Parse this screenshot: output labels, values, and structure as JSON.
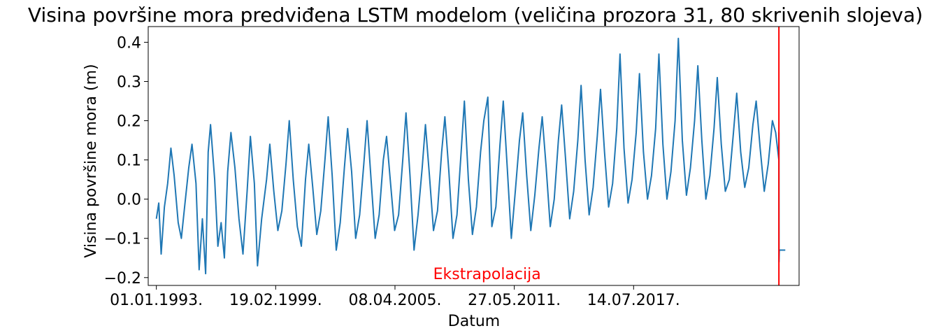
{
  "chart_data": {
    "type": "line",
    "title": "Visina površine mora predviđena LSTM modelom (veličina prozora 31, 80 skrivenih slojeva)",
    "xlabel": "Datum",
    "ylabel": "Visina površine mora (m)",
    "xlim": [
      "1992-08-01",
      "2026-01-15"
    ],
    "ylim": [
      -0.22,
      0.44
    ],
    "x_ticks": [
      "01.01.1993.",
      "19.02.1999.",
      "08.04.2005.",
      "27.05.2011.",
      "14.07.2017."
    ],
    "x_tick_dates": [
      "1993-01-01",
      "1999-02-19",
      "2005-04-08",
      "2011-05-27",
      "2017-07-14"
    ],
    "y_ticks": [
      -0.2,
      -0.1,
      0.0,
      0.1,
      0.2,
      0.3,
      0.4
    ],
    "y_tick_labels": [
      "−0.2",
      "−0.1",
      "0.0",
      "0.1",
      "0.2",
      "0.3",
      "0.4"
    ],
    "grid": false,
    "series": [
      {
        "color": "#1f77b4",
        "points": [
          [
            "1993-01-01",
            -0.05
          ],
          [
            "1993-02-15",
            -0.01
          ],
          [
            "1993-04-01",
            -0.14
          ],
          [
            "1993-06-01",
            -0.02
          ],
          [
            "1993-08-01",
            0.04
          ],
          [
            "1993-10-01",
            0.13
          ],
          [
            "1993-12-01",
            0.06
          ],
          [
            "1994-02-15",
            -0.06
          ],
          [
            "1994-04-15",
            -0.1
          ],
          [
            "1994-06-15",
            -0.02
          ],
          [
            "1994-09-01",
            0.08
          ],
          [
            "1994-11-01",
            0.14
          ],
          [
            "1995-01-15",
            0.04
          ],
          [
            "1995-03-15",
            -0.18
          ],
          [
            "1995-05-15",
            -0.05
          ],
          [
            "1995-07-15",
            -0.19
          ],
          [
            "1995-09-01",
            0.12
          ],
          [
            "1995-10-15",
            0.19
          ],
          [
            "1996-01-01",
            0.05
          ],
          [
            "1996-03-01",
            -0.12
          ],
          [
            "1996-05-01",
            -0.06
          ],
          [
            "1996-07-01",
            -0.15
          ],
          [
            "1996-09-01",
            0.07
          ],
          [
            "1996-11-01",
            0.17
          ],
          [
            "1997-01-15",
            0.08
          ],
          [
            "1997-04-01",
            -0.05
          ],
          [
            "1997-06-15",
            -0.14
          ],
          [
            "1997-09-01",
            0.02
          ],
          [
            "1997-11-01",
            0.16
          ],
          [
            "1998-01-15",
            0.04
          ],
          [
            "1998-03-15",
            -0.17
          ],
          [
            "1998-06-01",
            -0.05
          ],
          [
            "1998-09-01",
            0.05
          ],
          [
            "1998-11-01",
            0.14
          ],
          [
            "1999-01-15",
            0.02
          ],
          [
            "1999-04-01",
            -0.08
          ],
          [
            "1999-06-15",
            -0.03
          ],
          [
            "1999-09-01",
            0.09
          ],
          [
            "1999-11-01",
            0.2
          ],
          [
            "2000-01-15",
            0.05
          ],
          [
            "2000-04-01",
            -0.07
          ],
          [
            "2000-06-15",
            -0.12
          ],
          [
            "2000-09-01",
            0.05
          ],
          [
            "2000-11-01",
            0.14
          ],
          [
            "2001-01-15",
            0.03
          ],
          [
            "2001-04-01",
            -0.09
          ],
          [
            "2001-06-15",
            -0.03
          ],
          [
            "2001-09-01",
            0.1
          ],
          [
            "2001-11-01",
            0.21
          ],
          [
            "2002-01-15",
            0.06
          ],
          [
            "2002-04-01",
            -0.13
          ],
          [
            "2002-06-15",
            -0.06
          ],
          [
            "2002-09-01",
            0.08
          ],
          [
            "2002-11-01",
            0.18
          ],
          [
            "2003-01-15",
            0.07
          ],
          [
            "2003-04-01",
            -0.1
          ],
          [
            "2003-06-15",
            -0.04
          ],
          [
            "2003-09-01",
            0.09
          ],
          [
            "2003-11-01",
            0.2
          ],
          [
            "2004-01-15",
            0.05
          ],
          [
            "2004-04-01",
            -0.1
          ],
          [
            "2004-06-15",
            -0.04
          ],
          [
            "2004-09-01",
            0.1
          ],
          [
            "2004-11-01",
            0.16
          ],
          [
            "2005-01-15",
            0.04
          ],
          [
            "2005-04-01",
            -0.08
          ],
          [
            "2005-06-15",
            -0.04
          ],
          [
            "2005-09-01",
            0.1
          ],
          [
            "2005-11-01",
            0.22
          ],
          [
            "2006-01-15",
            0.06
          ],
          [
            "2006-04-01",
            -0.13
          ],
          [
            "2006-06-15",
            -0.04
          ],
          [
            "2006-09-01",
            0.08
          ],
          [
            "2006-11-01",
            0.19
          ],
          [
            "2007-01-15",
            0.06
          ],
          [
            "2007-04-01",
            -0.08
          ],
          [
            "2007-06-15",
            -0.03
          ],
          [
            "2007-09-01",
            0.12
          ],
          [
            "2007-11-01",
            0.21
          ],
          [
            "2008-01-15",
            0.07
          ],
          [
            "2008-04-01",
            -0.1
          ],
          [
            "2008-06-15",
            -0.04
          ],
          [
            "2008-09-01",
            0.12
          ],
          [
            "2008-11-01",
            0.25
          ],
          [
            "2009-01-15",
            0.05
          ],
          [
            "2009-04-01",
            -0.09
          ],
          [
            "2009-06-15",
            -0.02
          ],
          [
            "2009-09-01",
            0.12
          ],
          [
            "2009-11-01",
            0.2
          ],
          [
            "2010-01-15",
            0.26
          ],
          [
            "2010-04-01",
            -0.07
          ],
          [
            "2010-06-15",
            -0.02
          ],
          [
            "2010-09-01",
            0.14
          ],
          [
            "2010-11-01",
            0.25
          ],
          [
            "2011-01-15",
            0.08
          ],
          [
            "2011-04-01",
            -0.1
          ],
          [
            "2011-06-15",
            0.02
          ],
          [
            "2011-09-01",
            0.15
          ],
          [
            "2011-11-01",
            0.22
          ],
          [
            "2012-01-15",
            0.06
          ],
          [
            "2012-04-01",
            -0.08
          ],
          [
            "2012-06-15",
            0.01
          ],
          [
            "2012-09-01",
            0.13
          ],
          [
            "2012-11-01",
            0.21
          ],
          [
            "2013-01-15",
            0.08
          ],
          [
            "2013-04-01",
            -0.07
          ],
          [
            "2013-06-15",
            0.0
          ],
          [
            "2013-09-01",
            0.15
          ],
          [
            "2013-11-01",
            0.24
          ],
          [
            "2014-01-15",
            0.1
          ],
          [
            "2014-04-01",
            -0.05
          ],
          [
            "2014-06-15",
            0.02
          ],
          [
            "2014-09-01",
            0.15
          ],
          [
            "2014-11-01",
            0.29
          ],
          [
            "2015-01-15",
            0.1
          ],
          [
            "2015-04-01",
            -0.04
          ],
          [
            "2015-06-15",
            0.03
          ],
          [
            "2015-09-01",
            0.16
          ],
          [
            "2015-11-01",
            0.28
          ],
          [
            "2016-01-15",
            0.12
          ],
          [
            "2016-04-01",
            -0.02
          ],
          [
            "2016-06-15",
            0.04
          ],
          [
            "2016-09-01",
            0.18
          ],
          [
            "2016-11-01",
            0.37
          ],
          [
            "2017-01-15",
            0.13
          ],
          [
            "2017-04-01",
            -0.01
          ],
          [
            "2017-06-15",
            0.05
          ],
          [
            "2017-09-01",
            0.17
          ],
          [
            "2017-11-01",
            0.32
          ],
          [
            "2018-01-15",
            0.12
          ],
          [
            "2018-04-01",
            0.0
          ],
          [
            "2018-06-15",
            0.06
          ],
          [
            "2018-09-01",
            0.18
          ],
          [
            "2018-11-01",
            0.37
          ],
          [
            "2019-01-15",
            0.14
          ],
          [
            "2019-04-01",
            0.0
          ],
          [
            "2019-06-15",
            0.07
          ],
          [
            "2019-09-01",
            0.2
          ],
          [
            "2019-11-01",
            0.41
          ],
          [
            "2020-01-15",
            0.15
          ],
          [
            "2020-04-01",
            0.01
          ],
          [
            "2020-06-15",
            0.08
          ],
          [
            "2020-09-01",
            0.2
          ],
          [
            "2020-11-01",
            0.34
          ],
          [
            "2021-01-15",
            0.15
          ],
          [
            "2021-04-01",
            0.0
          ],
          [
            "2021-06-15",
            0.06
          ],
          [
            "2021-09-01",
            0.18
          ],
          [
            "2021-11-01",
            0.31
          ],
          [
            "2022-01-15",
            0.14
          ],
          [
            "2022-04-01",
            0.02
          ],
          [
            "2022-06-15",
            0.05
          ],
          [
            "2022-09-01",
            0.17
          ],
          [
            "2022-11-01",
            0.27
          ],
          [
            "2023-01-15",
            0.12
          ],
          [
            "2023-04-01",
            0.03
          ],
          [
            "2023-06-15",
            0.08
          ],
          [
            "2023-09-01",
            0.19
          ],
          [
            "2023-11-01",
            0.25
          ],
          [
            "2024-01-15",
            0.13
          ],
          [
            "2024-04-01",
            0.02
          ],
          [
            "2024-06-15",
            0.09
          ],
          [
            "2024-09-01",
            0.2
          ],
          [
            "2024-11-01",
            0.17
          ],
          [
            "2024-12-31",
            0.1
          ]
        ]
      },
      {
        "color": "#1f77b4",
        "points": [
          [
            "2025-01-01",
            0.17
          ],
          [
            "2025-01-03",
            -0.16
          ],
          [
            "2025-01-08",
            -0.13
          ],
          [
            "2025-05-01",
            -0.13
          ]
        ]
      }
    ],
    "vline": {
      "x": "2025-01-01",
      "color": "#ff0000"
    },
    "annotation": {
      "text": "Ekstrapolacija",
      "x": "2010-01-01",
      "y": -0.19,
      "color": "#ff0000"
    }
  }
}
